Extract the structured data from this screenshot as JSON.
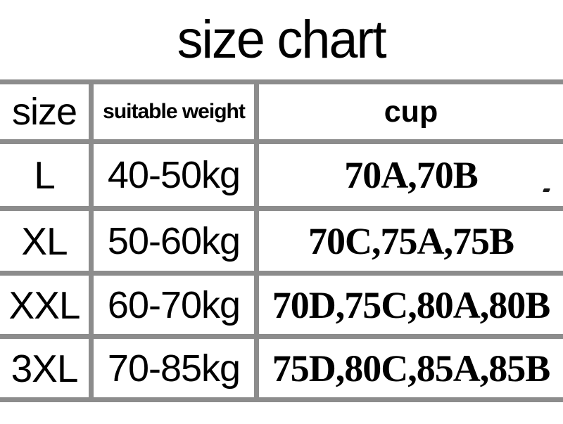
{
  "title": "size chart",
  "chart_data": {
    "type": "table",
    "columns": [
      "size",
      "suitable weight",
      "cup"
    ],
    "rows": [
      [
        "L",
        "40-50kg",
        "70A,70B"
      ],
      [
        "XL",
        "50-60kg",
        "70C,75A,75B"
      ],
      [
        "XXL",
        "60-70kg",
        "70D,75C,80A,80B"
      ],
      [
        "3XL",
        "70-85kg",
        "75D,80C,85A,85B"
      ]
    ]
  },
  "colors": {
    "border": "#8c8c8c",
    "text": "#000000",
    "background": "#ffffff"
  }
}
